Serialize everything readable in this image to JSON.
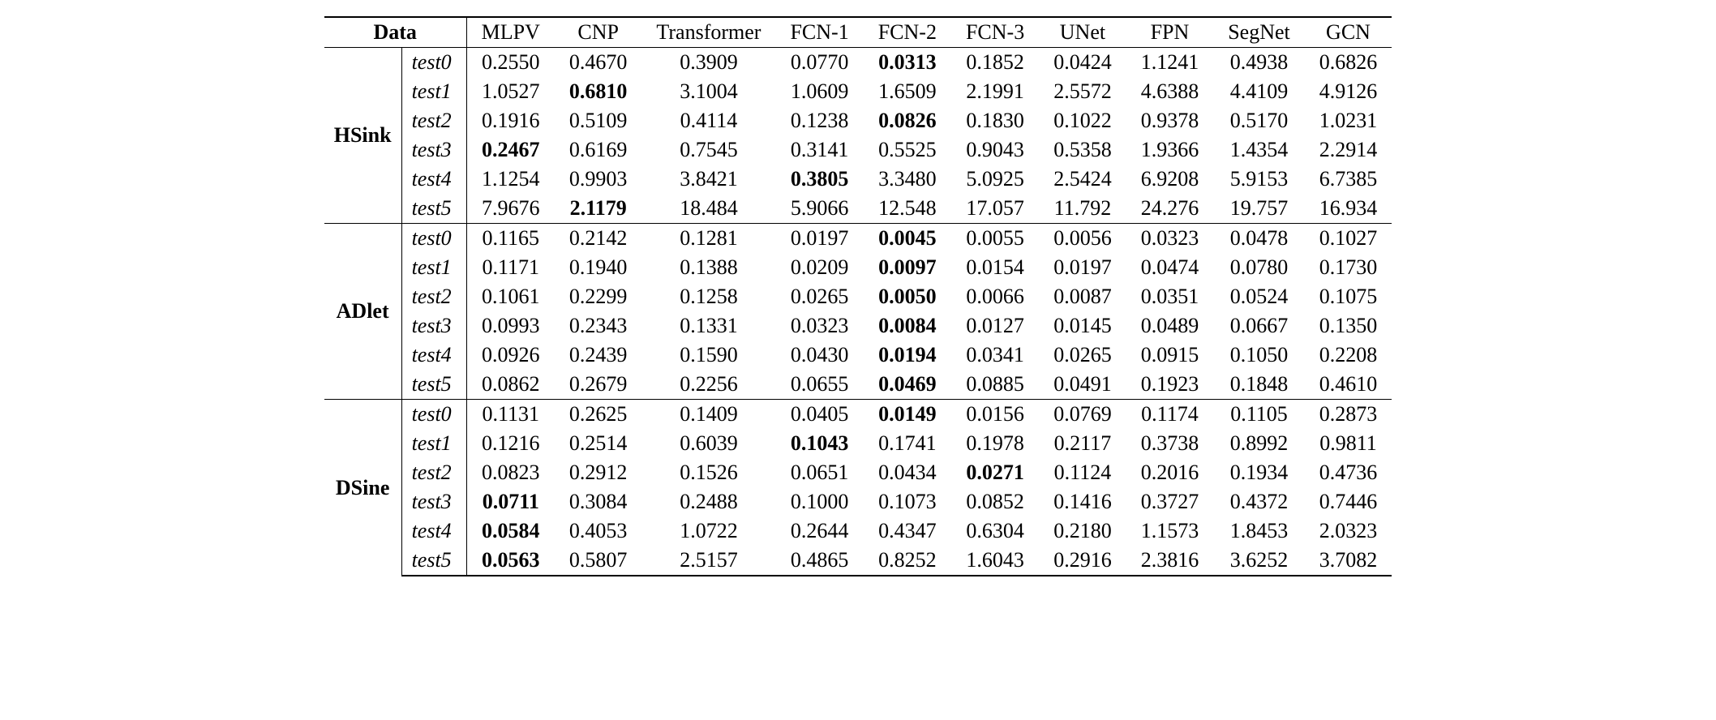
{
  "table": {
    "type": "table",
    "background_color": "#ffffff",
    "text_color": "#000000",
    "rule_color": "#000000",
    "font_family": "Times New Roman",
    "header_fontsize": 26,
    "cell_fontsize": 26,
    "cell_padding_v": 3,
    "cell_padding_h": 18,
    "data_header": "Data",
    "columns": [
      "MLPV",
      "CNP",
      "Transformer",
      "FCN-1",
      "FCN-2",
      "FCN-3",
      "UNet",
      "FPN",
      "SegNet",
      "GCN"
    ],
    "column_align": "center",
    "subset_label_align": "left",
    "group_label_align": "center",
    "top_rule_width": 2,
    "mid_rule_width": 1,
    "bottom_rule_width": 2,
    "groups": [
      {
        "label": "HSink",
        "rows": [
          {
            "subset": "test0",
            "values": [
              "0.2550",
              "0.4670",
              "0.3909",
              "0.0770",
              "0.0313",
              "0.1852",
              "0.0424",
              "1.1241",
              "0.4938",
              "0.6826"
            ],
            "bold_idx": 4
          },
          {
            "subset": "test1",
            "values": [
              "1.0527",
              "0.6810",
              "3.1004",
              "1.0609",
              "1.6509",
              "2.1991",
              "2.5572",
              "4.6388",
              "4.4109",
              "4.9126"
            ],
            "bold_idx": 1
          },
          {
            "subset": "test2",
            "values": [
              "0.1916",
              "0.5109",
              "0.4114",
              "0.1238",
              "0.0826",
              "0.1830",
              "0.1022",
              "0.9378",
              "0.5170",
              "1.0231"
            ],
            "bold_idx": 4
          },
          {
            "subset": "test3",
            "values": [
              "0.2467",
              "0.6169",
              "0.7545",
              "0.3141",
              "0.5525",
              "0.9043",
              "0.5358",
              "1.9366",
              "1.4354",
              "2.2914"
            ],
            "bold_idx": 0
          },
          {
            "subset": "test4",
            "values": [
              "1.1254",
              "0.9903",
              "3.8421",
              "0.3805",
              "3.3480",
              "5.0925",
              "2.5424",
              "6.9208",
              "5.9153",
              "6.7385"
            ],
            "bold_idx": 3
          },
          {
            "subset": "test5",
            "values": [
              "7.9676",
              "2.1179",
              "18.484",
              "5.9066",
              "12.548",
              "17.057",
              "11.792",
              "24.276",
              "19.757",
              "16.934"
            ],
            "bold_idx": 1
          }
        ]
      },
      {
        "label": "ADlet",
        "rows": [
          {
            "subset": "test0",
            "values": [
              "0.1165",
              "0.2142",
              "0.1281",
              "0.0197",
              "0.0045",
              "0.0055",
              "0.0056",
              "0.0323",
              "0.0478",
              "0.1027"
            ],
            "bold_idx": 4
          },
          {
            "subset": "test1",
            "values": [
              "0.1171",
              "0.1940",
              "0.1388",
              "0.0209",
              "0.0097",
              "0.0154",
              "0.0197",
              "0.0474",
              "0.0780",
              "0.1730"
            ],
            "bold_idx": 4
          },
          {
            "subset": "test2",
            "values": [
              "0.1061",
              "0.2299",
              "0.1258",
              "0.0265",
              "0.0050",
              "0.0066",
              "0.0087",
              "0.0351",
              "0.0524",
              "0.1075"
            ],
            "bold_idx": 4
          },
          {
            "subset": "test3",
            "values": [
              "0.0993",
              "0.2343",
              "0.1331",
              "0.0323",
              "0.0084",
              "0.0127",
              "0.0145",
              "0.0489",
              "0.0667",
              "0.1350"
            ],
            "bold_idx": 4
          },
          {
            "subset": "test4",
            "values": [
              "0.0926",
              "0.2439",
              "0.1590",
              "0.0430",
              "0.0194",
              "0.0341",
              "0.0265",
              "0.0915",
              "0.1050",
              "0.2208"
            ],
            "bold_idx": 4
          },
          {
            "subset": "test5",
            "values": [
              "0.0862",
              "0.2679",
              "0.2256",
              "0.0655",
              "0.0469",
              "0.0885",
              "0.0491",
              "0.1923",
              "0.1848",
              "0.4610"
            ],
            "bold_idx": 4
          }
        ]
      },
      {
        "label": "DSine",
        "rows": [
          {
            "subset": "test0",
            "values": [
              "0.1131",
              "0.2625",
              "0.1409",
              "0.0405",
              "0.0149",
              "0.0156",
              "0.0769",
              "0.1174",
              "0.1105",
              "0.2873"
            ],
            "bold_idx": 4
          },
          {
            "subset": "test1",
            "values": [
              "0.1216",
              "0.2514",
              "0.6039",
              "0.1043",
              "0.1741",
              "0.1978",
              "0.2117",
              "0.3738",
              "0.8992",
              "0.9811"
            ],
            "bold_idx": 3
          },
          {
            "subset": "test2",
            "values": [
              "0.0823",
              "0.2912",
              "0.1526",
              "0.0651",
              "0.0434",
              "0.0271",
              "0.1124",
              "0.2016",
              "0.1934",
              "0.4736"
            ],
            "bold_idx": 5
          },
          {
            "subset": "test3",
            "values": [
              "0.0711",
              "0.3084",
              "0.2488",
              "0.1000",
              "0.1073",
              "0.0852",
              "0.1416",
              "0.3727",
              "0.4372",
              "0.7446"
            ],
            "bold_idx": 0
          },
          {
            "subset": "test4",
            "values": [
              "0.0584",
              "0.4053",
              "1.0722",
              "0.2644",
              "0.4347",
              "0.6304",
              "0.2180",
              "1.1573",
              "1.8453",
              "2.0323"
            ],
            "bold_idx": 0
          },
          {
            "subset": "test5",
            "values": [
              "0.0563",
              "0.5807",
              "2.5157",
              "0.4865",
              "0.8252",
              "1.6043",
              "0.2916",
              "2.3816",
              "3.6252",
              "3.7082"
            ],
            "bold_idx": 0
          }
        ]
      }
    ]
  }
}
